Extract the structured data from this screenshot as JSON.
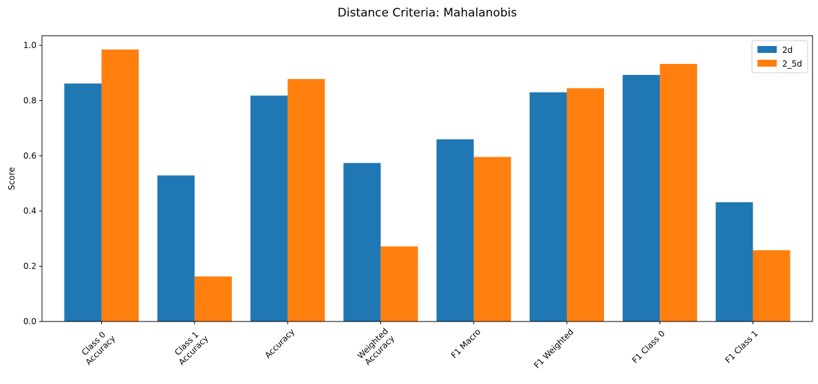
{
  "chart_data": {
    "type": "bar",
    "title": "Distance Criteria: Mahalanobis",
    "xlabel": "",
    "ylabel": "Score",
    "ylim": [
      0,
      1.035
    ],
    "yticks": [
      "0.0",
      "0.2",
      "0.4",
      "0.6",
      "0.8",
      "1.0"
    ],
    "categories": [
      [
        "Class 0",
        "Accuracy"
      ],
      [
        "Class 1",
        "Accuracy"
      ],
      [
        "Accuracy"
      ],
      [
        "Weighted",
        "Accuracy"
      ],
      [
        "F1 Macro"
      ],
      [
        "F1 Weighted"
      ],
      [
        "F1 Class 0"
      ],
      [
        "F1 Class 1"
      ]
    ],
    "series": [
      {
        "name": "2d",
        "color": "#1f77b4",
        "values": [
          0.862,
          0.529,
          0.818,
          0.574,
          0.66,
          0.83,
          0.893,
          0.432
        ]
      },
      {
        "name": "2_5d",
        "color": "#ff7f0e",
        "values": [
          0.985,
          0.163,
          0.878,
          0.272,
          0.596,
          0.845,
          0.933,
          0.258
        ]
      }
    ],
    "grid": false,
    "legend": "top-right"
  }
}
